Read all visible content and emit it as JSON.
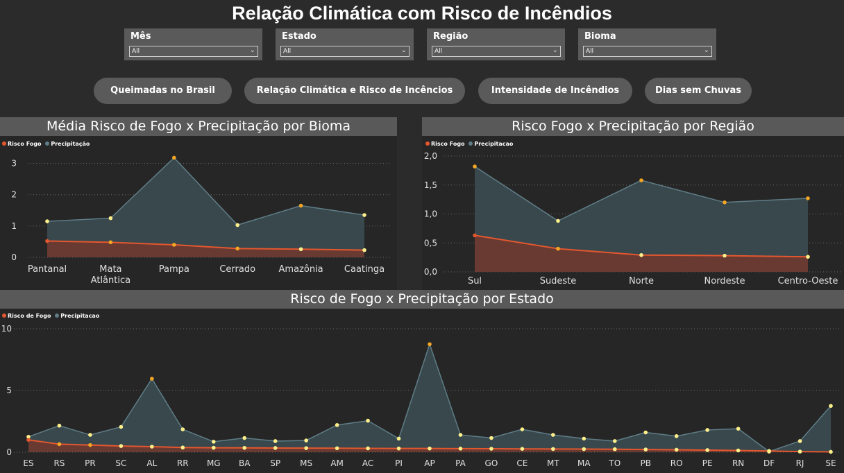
{
  "page": {
    "title": "Relação Climática com Risco de Incêndios"
  },
  "slicers": [
    {
      "label": "Mês",
      "value": "All"
    },
    {
      "label": "Estado",
      "value": "All"
    },
    {
      "label": "Região",
      "value": "All"
    },
    {
      "label": "Bioma",
      "value": "All"
    }
  ],
  "nav": [
    {
      "label": "Queimadas no Brasil"
    },
    {
      "label": "Relação Climática e Risco de Incêncios"
    },
    {
      "label": "Intensidade de Incêndios"
    },
    {
      "label": "Dias sem Chuvas"
    }
  ],
  "colors": {
    "risk": "#e4572e",
    "risk_fill": "#6b3a30",
    "precip": "#5f7d87",
    "precip_fill": "#3a4a4f",
    "marker_orange": "#f5a623",
    "marker_yellow": "#fdf08a"
  },
  "chart_data": [
    {
      "type": "area",
      "title": "Média Risco de Fogo x Precipitação por Bioma",
      "categories": [
        "Pantanal",
        "Mata Atlântica",
        "Pampa",
        "Cerrado",
        "Amazônia",
        "Caatinga"
      ],
      "series": [
        {
          "name": "Risco Fogo",
          "values": [
            0.52,
            0.48,
            0.4,
            0.28,
            0.26,
            0.23
          ]
        },
        {
          "name": "Precipitação",
          "values": [
            1.15,
            1.25,
            3.18,
            1.03,
            1.65,
            1.35
          ]
        }
      ],
      "yticks": [
        "0",
        "1",
        "2",
        "3"
      ],
      "ylim": [
        0,
        3.5
      ],
      "legend": "top-left"
    },
    {
      "type": "area",
      "title": "Risco Fogo x Precipitação por Região",
      "categories": [
        "Sul",
        "Sudeste",
        "Norte",
        "Nordeste",
        "Centro-Oeste"
      ],
      "series": [
        {
          "name": "Risco Fogo",
          "values": [
            0.63,
            0.4,
            0.29,
            0.28,
            0.26
          ]
        },
        {
          "name": "Precipitacao",
          "values": [
            1.82,
            0.88,
            1.58,
            1.2,
            1.27
          ]
        }
      ],
      "yticks": [
        "0,0",
        "0,5",
        "1,0",
        "1,5",
        "2,0"
      ],
      "ylim": [
        0,
        2.0
      ],
      "legend": "top-left"
    },
    {
      "type": "area",
      "title": "Risco de Fogo x Precipitação por Estado",
      "categories": [
        "ES",
        "RS",
        "PR",
        "SC",
        "AL",
        "RR",
        "MG",
        "BA",
        "SP",
        "MS",
        "AM",
        "AC",
        "PI",
        "AP",
        "PA",
        "GO",
        "CE",
        "MT",
        "MA",
        "TO",
        "PB",
        "RO",
        "PE",
        "RN",
        "DF",
        "RJ",
        "SE"
      ],
      "series": [
        {
          "name": "Risco de Fogo",
          "values": [
            1.0,
            0.65,
            0.58,
            0.5,
            0.45,
            0.38,
            0.36,
            0.35,
            0.34,
            0.33,
            0.32,
            0.31,
            0.3,
            0.3,
            0.29,
            0.28,
            0.27,
            0.26,
            0.25,
            0.24,
            0.22,
            0.2,
            0.17,
            0.14,
            0.1,
            0.05,
            0.03
          ]
        },
        {
          "name": "Precipitacao",
          "values": [
            1.25,
            2.15,
            1.4,
            2.05,
            5.95,
            1.85,
            0.85,
            1.15,
            0.9,
            0.95,
            2.2,
            2.55,
            1.1,
            8.75,
            1.4,
            1.15,
            1.85,
            1.4,
            1.1,
            0.9,
            1.6,
            1.3,
            1.8,
            1.9,
            0.05,
            0.9,
            3.75
          ]
        }
      ],
      "yticks": [
        "0",
        "5",
        "10"
      ],
      "ylim": [
        0,
        10
      ],
      "legend": "top-left"
    }
  ]
}
